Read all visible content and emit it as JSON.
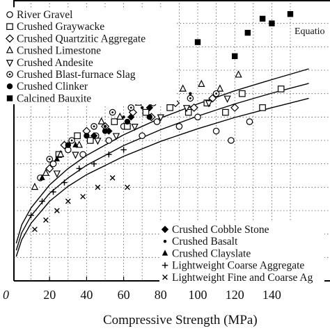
{
  "chart_data": {
    "type": "scatter",
    "xlabel": "Compressive Strength (MPa)",
    "ylabel": "",
    "xlim": [
      0,
      160
    ],
    "ylim": [
      0,
      60
    ],
    "x_ticks": [
      0,
      20,
      40,
      60,
      80,
      100,
      120,
      140
    ],
    "x_tick_labels": [
      "0",
      "20",
      "40",
      "60",
      "80",
      "100",
      "120",
      "140"
    ],
    "grid": true,
    "annotation": "Equatio",
    "legend_top": [
      {
        "name": "River Gravel",
        "marker": "circle-open"
      },
      {
        "name": "Crushed Graywacke",
        "marker": "square-open"
      },
      {
        "name": "Crushed Quartzitic Aggregate",
        "marker": "diamond-open"
      },
      {
        "name": "Crushed Limestone",
        "marker": "triangle-up-open"
      },
      {
        "name": "Crushed Andesite",
        "marker": "triangle-down-open"
      },
      {
        "name": "Crushed Blast-furnace Slag",
        "marker": "circle-dot"
      },
      {
        "name": "Crushed Clinker",
        "marker": "circle-filled"
      },
      {
        "name": "Calcined Bauxite",
        "marker": "square-filled"
      }
    ],
    "legend_bottom": [
      {
        "name": "Crushed Cobble Stone",
        "marker": "diamond-filled"
      },
      {
        "name": "Crushed Basalt",
        "marker": "dot-small"
      },
      {
        "name": "Crushed Clayslate",
        "marker": "triangle-up-filled"
      },
      {
        "name": "Lightweight Coarse Aggregate",
        "marker": "plus"
      },
      {
        "name": "Lightweight Fine and Coarse Ag",
        "marker": "cross"
      }
    ],
    "fit_curves": [
      {
        "x": [
          2,
          5,
          10,
          20,
          30,
          40,
          60,
          80,
          100,
          120,
          140,
          160
        ],
        "y": [
          8.0,
          12.0,
          15.6,
          20.5,
          24.0,
          26.8,
          31.2,
          34.8,
          37.8,
          40.6,
          43.0,
          45.3
        ]
      },
      {
        "x": [
          2,
          5,
          10,
          20,
          30,
          40,
          60,
          80,
          100,
          120,
          140,
          160
        ],
        "y": [
          6.5,
          10.3,
          13.9,
          18.7,
          22.0,
          24.7,
          28.9,
          32.3,
          35.2,
          37.8,
          40.1,
          42.2
        ]
      },
      {
        "x": [
          2,
          5,
          10,
          20,
          30,
          40,
          60,
          80,
          100,
          120,
          140,
          160
        ],
        "y": [
          5.2,
          8.8,
          12.3,
          17.0,
          20.2,
          22.7,
          26.6,
          29.8,
          32.5,
          34.9,
          37.0,
          39.0
        ]
      }
    ],
    "series": [
      {
        "name": "River Gravel",
        "points": [
          [
            15,
            22
          ],
          [
            22,
            25
          ],
          [
            30,
            28
          ],
          [
            38,
            27
          ],
          [
            45,
            31
          ],
          [
            52,
            30
          ],
          [
            60,
            33
          ],
          [
            70,
            31
          ],
          [
            78,
            34
          ],
          [
            90,
            33
          ],
          [
            100,
            35
          ],
          [
            110,
            32
          ],
          [
            118,
            30
          ],
          [
            128,
            34
          ]
        ]
      },
      {
        "name": "Crushed Graywacke",
        "points": [
          [
            25,
            27
          ],
          [
            35,
            31
          ],
          [
            42,
            30
          ],
          [
            55,
            34
          ],
          [
            62,
            33
          ],
          [
            72,
            36
          ],
          [
            85,
            37
          ],
          [
            95,
            36
          ],
          [
            105,
            38
          ],
          [
            115,
            36
          ],
          [
            124,
            40
          ],
          [
            135,
            37
          ],
          [
            145,
            41
          ]
        ]
      },
      {
        "name": "Crushed Quartzitic Aggregate",
        "points": [
          [
            20,
            24
          ],
          [
            28,
            29
          ],
          [
            40,
            32
          ],
          [
            50,
            33
          ],
          [
            65,
            36
          ],
          [
            75,
            35
          ],
          [
            88,
            38
          ],
          [
            98,
            37
          ],
          [
            108,
            39
          ],
          [
            120,
            37
          ]
        ]
      },
      {
        "name": "Crushed Limestone",
        "points": [
          [
            12,
            20
          ],
          [
            18,
            23
          ],
          [
            26,
            27
          ],
          [
            36,
            29
          ],
          [
            48,
            34
          ],
          [
            58,
            35
          ],
          [
            68,
            38
          ],
          [
            82,
            39
          ],
          [
            92,
            41
          ],
          [
            102,
            42
          ],
          [
            112,
            41
          ],
          [
            122,
            44
          ]
        ]
      },
      {
        "name": "Crushed Andesite",
        "points": [
          [
            24,
            23
          ],
          [
            34,
            27
          ],
          [
            46,
            30
          ],
          [
            56,
            31
          ],
          [
            66,
            33
          ],
          [
            80,
            35
          ],
          [
            94,
            37
          ],
          [
            106,
            38
          ],
          [
            116,
            39
          ]
        ]
      },
      {
        "name": "Crushed Blast-furnace Slag",
        "points": [
          [
            20,
            26
          ],
          [
            32,
            30
          ],
          [
            44,
            33
          ],
          [
            54,
            36
          ],
          [
            64,
            37
          ],
          [
            76,
            38
          ],
          [
            86,
            40
          ],
          [
            96,
            39
          ],
          [
            110,
            40
          ]
        ]
      },
      {
        "name": "Crushed Clinker",
        "points": [
          [
            30,
            29
          ],
          [
            40,
            31
          ],
          [
            50,
            32
          ],
          [
            62,
            34
          ],
          [
            74,
            35
          ]
        ]
      },
      {
        "name": "Calcined Bauxite",
        "points": [
          [
            60,
            47
          ],
          [
            75,
            46
          ],
          [
            85,
            50
          ],
          [
            100,
            51
          ],
          [
            120,
            48
          ],
          [
            135,
            56
          ],
          [
            140,
            55
          ],
          [
            150,
            57
          ],
          [
            127,
            53
          ]
        ]
      },
      {
        "name": "Crushed Cobble Stone",
        "points": [
          [
            44,
            31
          ],
          [
            52,
            32
          ],
          [
            64,
            35
          ],
          [
            74,
            37
          ]
        ]
      },
      {
        "name": "Crushed Basalt",
        "points": [
          [
            50,
            33
          ],
          [
            60,
            35
          ],
          [
            70,
            37
          ],
          [
            84,
            38
          ],
          [
            96,
            40
          ]
        ]
      },
      {
        "name": "Crushed Clayslate",
        "points": [
          [
            16,
            22
          ],
          [
            24,
            26
          ],
          [
            34,
            29
          ]
        ]
      },
      {
        "name": "Lightweight Coarse Aggregate",
        "points": [
          [
            10,
            14
          ],
          [
            16,
            17
          ],
          [
            22,
            19
          ],
          [
            28,
            21
          ],
          [
            36,
            24
          ],
          [
            44,
            25
          ],
          [
            52,
            27
          ],
          [
            60,
            28
          ]
        ]
      },
      {
        "name": "Lightweight Fine and Coarse Ag",
        "points": [
          [
            12,
            11
          ],
          [
            18,
            13
          ],
          [
            24,
            15
          ],
          [
            30,
            17
          ],
          [
            38,
            18
          ],
          [
            46,
            20
          ],
          [
            54,
            22
          ],
          [
            62,
            20
          ]
        ]
      }
    ]
  }
}
